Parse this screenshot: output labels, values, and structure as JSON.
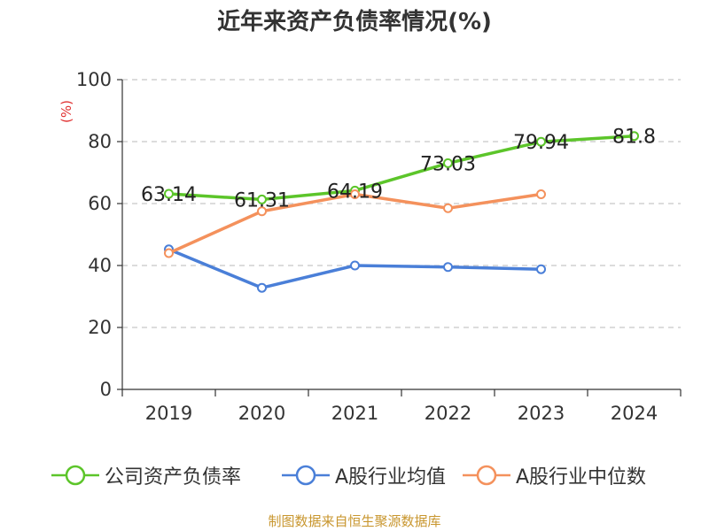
{
  "chart_data": {
    "type": "line",
    "title": "近年来资产负债率情况(%)",
    "ylabel": "(%)",
    "xlabel": "",
    "categories": [
      "2019",
      "2020",
      "2021",
      "2022",
      "2023",
      "2024"
    ],
    "ylim": [
      0,
      100
    ],
    "yticks": [
      0,
      20,
      40,
      60,
      80,
      100
    ],
    "grid": true,
    "legend_position": "bottom",
    "series": [
      {
        "name": "公司资产负债率",
        "color": "#5cc52a",
        "show_labels": true,
        "values": [
          63.14,
          61.31,
          64.19,
          73.03,
          79.94,
          81.8
        ],
        "labels": [
          "63.14",
          "61.31",
          "64.19",
          "73.03",
          "79.94",
          "81.8"
        ]
      },
      {
        "name": "A股行业均值",
        "color": "#4a7fd8",
        "show_labels": false,
        "values": [
          45.2,
          32.8,
          40.0,
          39.5,
          38.8,
          null
        ]
      },
      {
        "name": "A股行业中位数",
        "color": "#f4915c",
        "show_labels": false,
        "values": [
          44.0,
          57.5,
          63.0,
          58.5,
          63.0,
          null
        ]
      }
    ]
  },
  "source": "制图数据来自恒生聚源数据库"
}
